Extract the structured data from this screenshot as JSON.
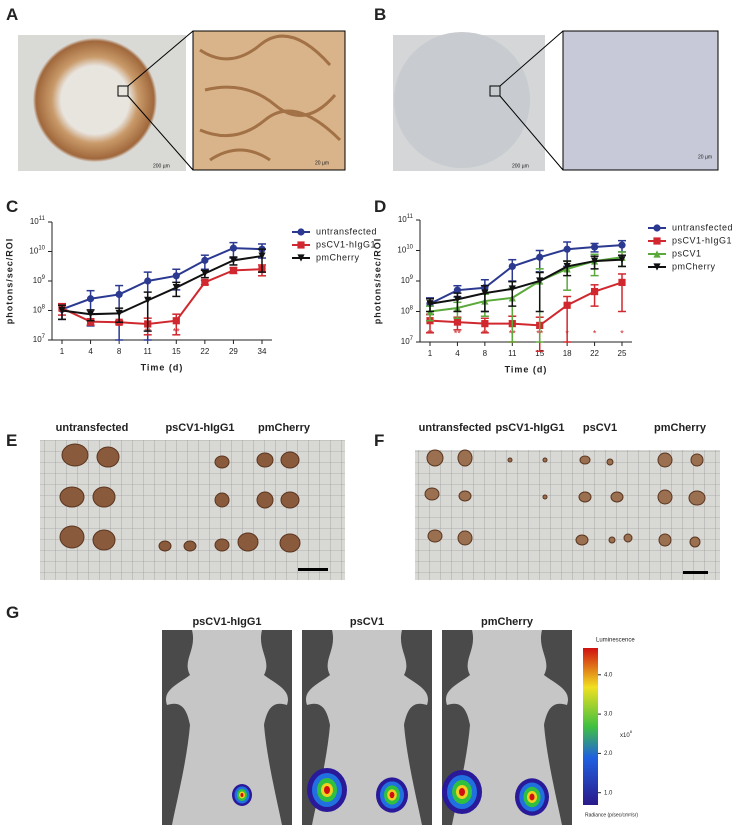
{
  "panel_labels": [
    "A",
    "B",
    "C",
    "D",
    "E",
    "F",
    "G"
  ],
  "panel_a": {
    "scale_bars": [
      "200 µm",
      "20 µm"
    ]
  },
  "panel_b": {
    "scale_bars": [
      "200 µm",
      "20 µm"
    ]
  },
  "chart_data": [
    {
      "type": "line",
      "y_label": "photons/sec/ROI",
      "x_label": "Time (d)",
      "categories": [
        "1",
        "4",
        "8",
        "11",
        "15",
        "22",
        "29",
        "34"
      ],
      "log_scale": true,
      "ylim": [
        10000000,
        100000000000
      ],
      "yticks": [
        {
          "value": 10000000,
          "label": "10",
          "sup": "7"
        },
        {
          "value": 100000000,
          "label": "10",
          "sup": "8"
        },
        {
          "value": 1000000000,
          "label": "10",
          "sup": "9"
        },
        {
          "value": 10000000000,
          "label": "10",
          "sup": "10"
        },
        {
          "value": 100000000000,
          "label": "10",
          "sup": "11"
        }
      ],
      "legend": "right",
      "series": [
        {
          "name": "untransfected",
          "color": "#2b3990",
          "marker": "circle",
          "values": [
            110000000,
            250000000,
            350000000,
            1000000000,
            1500000000,
            5000000000,
            13000000000,
            12000000000
          ],
          "errors": [
            60000000,
            220000000,
            350000000,
            1000000000,
            1000000000,
            2500000000,
            7000000000,
            6000000000
          ]
        },
        {
          "name": "psCV1-hIgG1",
          "color": "#d0282e",
          "marker": "square",
          "values": [
            120000000,
            42000000,
            40000000,
            35000000,
            45000000,
            900000000,
            2300000000,
            2500000000
          ],
          "errors": [
            50000000,
            10000000,
            5000000,
            20000000,
            30000000,
            150000000,
            500000000,
            1000000000
          ]
        },
        {
          "name": "pmCherry",
          "color": "#111111",
          "marker": "triangle-down",
          "values": [
            100000000,
            75000000,
            80000000,
            220000000,
            600000000,
            1800000000,
            5000000000,
            7000000000
          ],
          "errors": [
            50000000,
            30000000,
            40000000,
            200000000,
            300000000,
            500000000,
            1500000000,
            5000000000
          ]
        }
      ],
      "significance": [
        null,
        null,
        null,
        "**",
        "**",
        null,
        null,
        null
      ],
      "significance_color": "#d0282e"
    },
    {
      "type": "line",
      "y_label": "photons/sec/ROI",
      "x_label": "Time (d)",
      "categories": [
        "1",
        "4",
        "8",
        "11",
        "15",
        "18",
        "22",
        "25"
      ],
      "log_scale": true,
      "ylim": [
        10000000,
        100000000000
      ],
      "yticks": [
        {
          "value": 10000000,
          "label": "10",
          "sup": "7"
        },
        {
          "value": 100000000,
          "label": "10",
          "sup": "8"
        },
        {
          "value": 1000000000,
          "label": "10",
          "sup": "9"
        },
        {
          "value": 10000000000,
          "label": "10",
          "sup": "10"
        },
        {
          "value": 100000000000,
          "label": "10",
          "sup": "11"
        }
      ],
      "legend": "right",
      "series": [
        {
          "name": "untransfected",
          "color": "#2b3990",
          "marker": "circle",
          "values": [
            180000000,
            500000000,
            600000000,
            3000000000,
            6000000000,
            11000000000,
            13000000000,
            15000000000
          ],
          "errors": [
            100000000,
            200000000,
            500000000,
            2000000000,
            4000000000,
            8000000000,
            4000000000,
            6000000000
          ]
        },
        {
          "name": "psCV1-hIgG1",
          "color": "#d0282e",
          "marker": "square",
          "values": [
            50000000,
            45000000,
            40000000,
            40000000,
            35000000,
            160000000,
            450000000,
            900000000
          ],
          "errors": [
            30000000,
            20000000,
            20000000,
            30000000,
            30000000,
            150000000,
            300000000,
            800000000
          ]
        },
        {
          "name": "psCV1",
          "color": "#5aa93a",
          "marker": "triangle",
          "values": [
            100000000,
            130000000,
            220000000,
            280000000,
            1000000000,
            2500000000,
            4500000000,
            6000000000
          ],
          "errors": [
            50000000,
            70000000,
            150000000,
            300000000,
            1500000000,
            2000000000,
            3000000000,
            3000000000
          ]
        },
        {
          "name": "pmCherry",
          "color": "#111111",
          "marker": "triangle-down",
          "values": [
            180000000,
            250000000,
            400000000,
            550000000,
            1000000000,
            3000000000,
            4500000000,
            5000000000
          ],
          "errors": [
            80000000,
            150000000,
            300000000,
            400000000,
            900000000,
            1500000000,
            2000000000,
            2000000000
          ]
        }
      ],
      "significance": [
        "**",
        "**",
        "**",
        "**",
        "**",
        "*",
        "*",
        "*"
      ],
      "significance_color": "#d0282e"
    }
  ],
  "panel_e": {
    "groups": [
      "untransfected",
      "psCV1-hIgG1",
      "pmCherry"
    ]
  },
  "panel_f": {
    "groups": [
      "untransfected",
      "psCV1-hIgG1",
      "psCV1",
      "pmCherry"
    ]
  },
  "panel_g": {
    "groups": [
      "psCV1-hIgG1",
      "psCV1",
      "pmCherry"
    ],
    "colorbar": {
      "title": "Luminescence",
      "ticks": [
        {
          "value": 1,
          "label": "1.0"
        },
        {
          "value": 2,
          "label": "2.0"
        },
        {
          "value": 3,
          "label": "3.0"
        },
        {
          "value": 4,
          "label": "4.0"
        }
      ],
      "multiplier": {
        "label": "x10",
        "sup": "8"
      },
      "unit": "Radiance (p/sec/cm²/sr)"
    }
  }
}
